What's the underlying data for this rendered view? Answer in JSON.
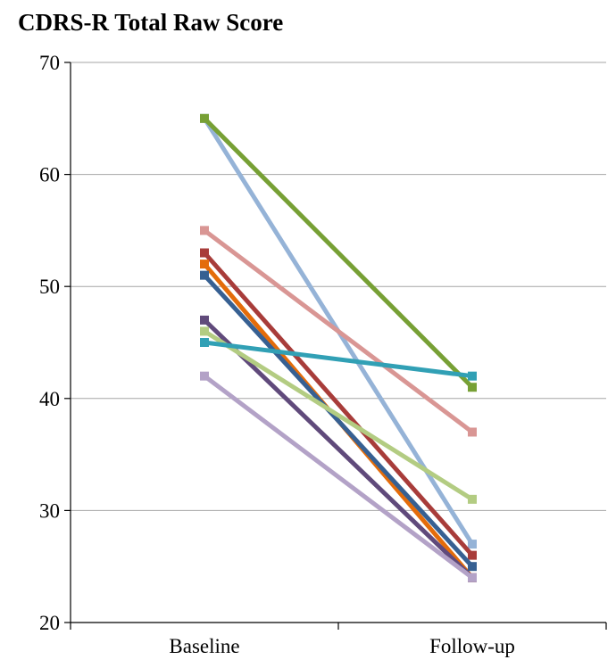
{
  "chart_data": {
    "type": "line",
    "title": "CDRS-R Total Raw Score",
    "xlabel": "",
    "ylabel": "",
    "categories": [
      "Baseline",
      "Follow-up"
    ],
    "ylim": [
      20,
      70
    ],
    "yticks": [
      20,
      30,
      40,
      50,
      60,
      70
    ],
    "grid": "horizontal",
    "legend": "none",
    "series": [
      {
        "values": [
          65,
          27
        ],
        "color": "#95b3d7"
      },
      {
        "values": [
          65,
          41
        ],
        "color": "#77a035"
      },
      {
        "values": [
          55,
          37
        ],
        "color": "#d99694"
      },
      {
        "values": [
          53,
          26
        ],
        "color": "#a83c3a"
      },
      {
        "values": [
          52,
          24
        ],
        "color": "#e46c0a"
      },
      {
        "values": [
          51,
          25
        ],
        "color": "#376092"
      },
      {
        "values": [
          47,
          24
        ],
        "color": "#604a7b"
      },
      {
        "values": [
          46,
          31
        ],
        "color": "#b3cc82"
      },
      {
        "values": [
          45,
          42
        ],
        "color": "#31a0b5"
      },
      {
        "values": [
          42,
          24
        ],
        "color": "#b3a2c7"
      }
    ]
  }
}
